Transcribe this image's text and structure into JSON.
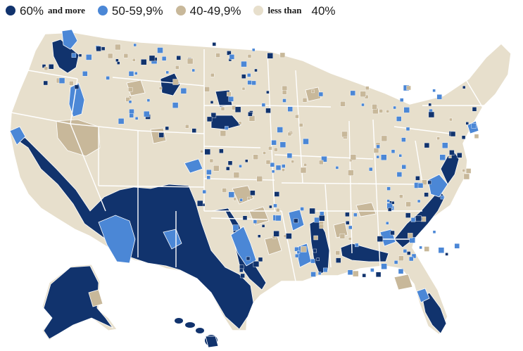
{
  "legend": {
    "items": [
      {
        "key": "high",
        "text": "60%",
        "text_small": "and more",
        "color": "#11336d"
      },
      {
        "key": "mid",
        "text": "50-59,9%",
        "color": "#4b87d6"
      },
      {
        "key": "low",
        "text": "40-49,9%",
        "color": "#c8b89a"
      },
      {
        "key": "lowest",
        "text_small": "less than",
        "text": "40%",
        "color": "#e7dfcc"
      }
    ]
  },
  "map": {
    "base_color": "#e7dfcc",
    "border_color": "#ffffff"
  }
}
